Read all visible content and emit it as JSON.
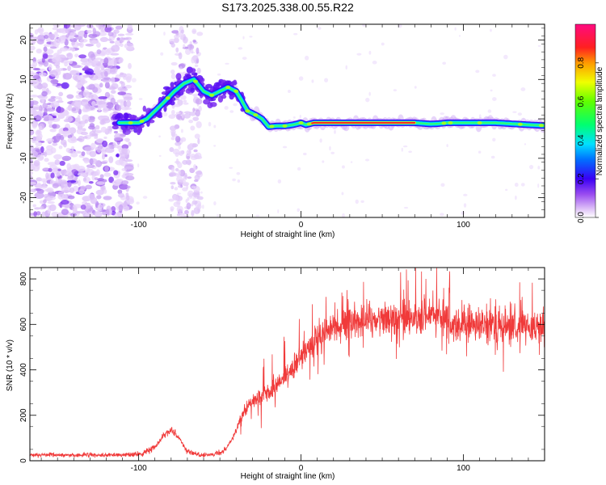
{
  "title": "S173.2025.338.00.55.R22",
  "chart_data": [
    {
      "type": "heatmap",
      "xlabel": "Height of straight line (km)",
      "ylabel": "Frequency (Hz)",
      "xlim": [
        -167,
        150
      ],
      "ylim": [
        -25,
        24
      ],
      "xticks": [
        -100,
        0,
        100
      ],
      "yticks": [
        -20,
        -10,
        0,
        10,
        20
      ],
      "colorbar": {
        "label": "Normalized spectral amplitude",
        "range": [
          0,
          1
        ],
        "ticks": [
          "0.0",
          "0.2",
          "0.4",
          "0.6",
          "0.8"
        ]
      },
      "ridge": {
        "x": [
          -112,
          -105,
          -100,
          -95,
          -90,
          -85,
          -78,
          -72,
          -66,
          -60,
          -55,
          -50,
          -45,
          -40,
          -37,
          -33,
          -28,
          -24,
          -20,
          -15,
          -10,
          -5,
          0,
          3,
          8,
          20,
          40,
          60,
          70,
          80,
          85,
          90,
          100,
          120,
          140,
          150
        ],
        "y": [
          -1,
          -1,
          -1,
          0,
          2,
          4,
          7,
          9,
          10,
          7,
          6,
          7,
          8,
          7,
          5,
          2,
          1,
          0,
          -2,
          -1.8,
          -1.8,
          -1.5,
          -1,
          -1.5,
          -1,
          -1,
          -1,
          -1,
          -1,
          -1.3,
          -1.2,
          -1,
          -1,
          -1,
          -1.5,
          -1.7
        ]
      }
    },
    {
      "type": "line",
      "xlabel": "Height of straight line (km)",
      "ylabel": "SNR (10 * v/v)",
      "xlim": [
        -167,
        150
      ],
      "ylim": [
        0,
        850
      ],
      "xticks": [
        -100,
        0,
        100
      ],
      "yticks": [
        0,
        200,
        400,
        600,
        800
      ],
      "color": "#f03a3a",
      "series": [
        {
          "name": "SNR",
          "x": [
            -167,
            -150,
            -130,
            -110,
            -98,
            -90,
            -85,
            -80,
            -75,
            -70,
            -62,
            -55,
            -48,
            -42,
            -38,
            -35,
            -30,
            -25,
            -20,
            -15,
            -10,
            -5,
            0,
            5,
            10,
            15,
            20,
            25,
            30,
            40,
            50,
            60,
            70,
            80,
            90,
            95,
            100,
            110,
            120,
            130,
            140,
            150
          ],
          "y": [
            25,
            25,
            25,
            25,
            30,
            60,
            110,
            140,
            100,
            40,
            25,
            25,
            40,
            100,
            170,
            220,
            260,
            290,
            300,
            330,
            360,
            400,
            450,
            490,
            530,
            560,
            585,
            600,
            610,
            620,
            625,
            628,
            630,
            632,
            625,
            590,
            600,
            600,
            595,
            590,
            590,
            585
          ]
        }
      ]
    }
  ]
}
